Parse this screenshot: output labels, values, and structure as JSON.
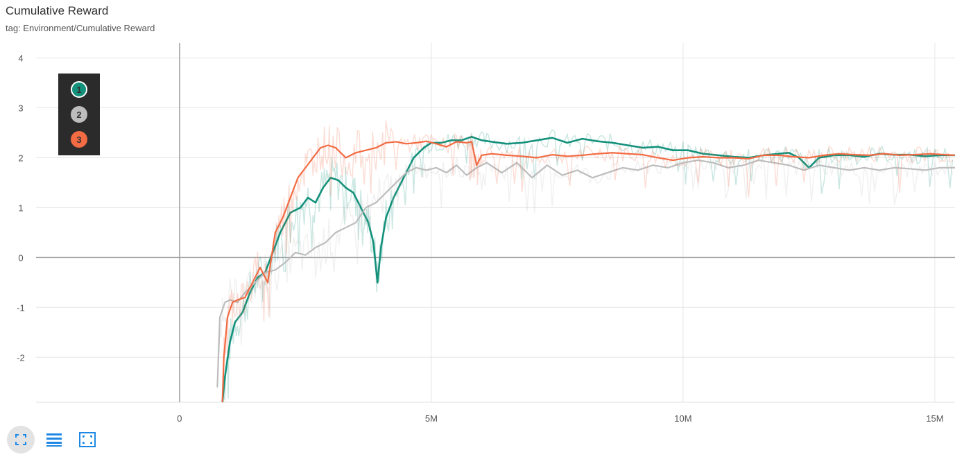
{
  "header": {
    "title": "Cumulative Reward",
    "subtitle": "tag: Environment/Cumulative Reward"
  },
  "legend": [
    {
      "label": "1",
      "color": "#13917b"
    },
    {
      "label": "2",
      "color": "#bdbdbd"
    },
    {
      "label": "3",
      "color": "#f26b43"
    }
  ],
  "toolbar": {
    "icons": [
      "expand-icon",
      "list-icon",
      "fit-domain-icon"
    ],
    "accent": "#1e88e5"
  },
  "chart_data": {
    "type": "line",
    "title": "Cumulative Reward",
    "subtitle": "tag: Environment/Cumulative Reward",
    "xlabel": "",
    "ylabel": "",
    "xlim": [
      -2850000,
      15400000
    ],
    "ylim": [
      -2.9,
      4.3
    ],
    "xticks": [
      0,
      5000000,
      10000000,
      15000000
    ],
    "xtick_labels": [
      "0",
      "5M",
      "10M",
      "15M"
    ],
    "yticks": [
      -2,
      -1,
      0,
      1,
      2,
      3,
      4
    ],
    "ytick_labels": [
      "-2",
      "-1",
      "0",
      "1",
      "2",
      "3",
      "4"
    ],
    "grid": true,
    "legend_position": "top-left",
    "series": [
      {
        "name": "1",
        "color": "#13917b",
        "x": [
          850000,
          900000,
          1000000,
          1100000,
          1250000,
          1400000,
          1550000,
          1700000,
          1850000,
          2000000,
          2200000,
          2400000,
          2550000,
          2700000,
          2850000,
          3000000,
          3150000,
          3300000,
          3450000,
          3550000,
          3650000,
          3750000,
          3850000,
          3930000,
          4000000,
          4100000,
          4250000,
          4450000,
          4650000,
          4850000,
          5000000,
          5200000,
          5400000,
          5600000,
          5800000,
          6000000,
          6200000,
          6500000,
          6800000,
          7100000,
          7400000,
          7700000,
          8000000,
          8300000,
          8600000,
          8900000,
          9200000,
          9500000,
          9800000,
          10100000,
          10400000,
          10700000,
          11000000,
          11300000,
          11600000,
          11900000,
          12100000,
          12300000,
          12500000,
          12700000,
          13000000,
          13300000,
          13600000,
          13900000,
          14200000,
          14500000,
          14800000,
          15100000,
          15400000
        ],
        "y": [
          -2.9,
          -2.4,
          -1.7,
          -1.3,
          -1.1,
          -0.7,
          -0.4,
          -0.3,
          0.1,
          0.5,
          0.9,
          1.0,
          1.2,
          1.1,
          1.4,
          1.6,
          1.55,
          1.4,
          1.3,
          1.1,
          0.9,
          0.7,
          0.3,
          -0.5,
          0.2,
          0.8,
          1.2,
          1.6,
          2.0,
          2.2,
          2.3,
          2.3,
          2.35,
          2.35,
          2.42,
          2.35,
          2.32,
          2.28,
          2.3,
          2.35,
          2.4,
          2.3,
          2.38,
          2.33,
          2.3,
          2.25,
          2.2,
          2.22,
          2.15,
          2.15,
          2.08,
          2.05,
          2.02,
          2.0,
          2.05,
          2.08,
          2.1,
          2.0,
          1.8,
          2.0,
          2.05,
          2.05,
          2.02,
          2.08,
          2.06,
          2.06,
          2.03,
          2.05,
          2.05
        ]
      },
      {
        "name": "2",
        "color": "#bdbdbd",
        "x": [
          750000,
          800000,
          900000,
          1000000,
          1150000,
          1300000,
          1500000,
          1700000,
          1900000,
          2100000,
          2300000,
          2500000,
          2700000,
          2900000,
          3100000,
          3300000,
          3500000,
          3700000,
          3900000,
          4100000,
          4300000,
          4500000,
          4700000,
          4900000,
          5100000,
          5300000,
          5500000,
          5700000,
          5900000,
          6100000,
          6400000,
          6700000,
          7000000,
          7300000,
          7600000,
          7900000,
          8200000,
          8500000,
          8800000,
          9100000,
          9400000,
          9700000,
          10000000,
          10300000,
          10600000,
          10900000,
          11200000,
          11500000,
          11800000,
          12100000,
          12400000,
          12700000,
          13000000,
          13300000,
          13600000,
          13900000,
          14200000,
          14500000,
          14800000,
          15100000,
          15400000
        ],
        "y": [
          -2.6,
          -1.2,
          -0.9,
          -0.85,
          -0.9,
          -0.7,
          -0.5,
          -0.3,
          -0.25,
          -0.1,
          0.1,
          0.05,
          0.2,
          0.3,
          0.5,
          0.6,
          0.7,
          1.0,
          1.1,
          1.3,
          1.5,
          1.7,
          1.8,
          1.75,
          1.8,
          1.7,
          1.85,
          1.65,
          1.8,
          1.9,
          1.7,
          1.9,
          1.6,
          1.85,
          1.65,
          1.75,
          1.6,
          1.7,
          1.8,
          1.75,
          1.85,
          1.8,
          1.9,
          1.95,
          1.9,
          1.8,
          1.85,
          1.95,
          1.9,
          1.85,
          1.75,
          1.85,
          1.8,
          1.75,
          1.8,
          1.75,
          1.8,
          1.78,
          1.75,
          1.8,
          1.8
        ]
      },
      {
        "name": "3",
        "color": "#f26b43",
        "x": [
          850000,
          880000,
          950000,
          1050000,
          1150000,
          1300000,
          1450000,
          1600000,
          1750000,
          1900000,
          2050000,
          2200000,
          2350000,
          2500000,
          2650000,
          2800000,
          2950000,
          3100000,
          3300000,
          3500000,
          3700000,
          3900000,
          4100000,
          4300000,
          4500000,
          4700000,
          4900000,
          5100000,
          5300000,
          5500000,
          5700000,
          5800000,
          5900000,
          6000000,
          6200000,
          6500000,
          6800000,
          7100000,
          7400000,
          7700000,
          8000000,
          8300000,
          8600000,
          8900000,
          9200000,
          9500000,
          9800000,
          10100000,
          10400000,
          10700000,
          11000000,
          11300000,
          11600000,
          11900000,
          12200000,
          12500000,
          12800000,
          13100000,
          13400000,
          13700000,
          14000000,
          14300000,
          14600000,
          14900000,
          15200000,
          15400000
        ],
        "y": [
          -2.9,
          -2.0,
          -1.2,
          -0.9,
          -0.85,
          -0.8,
          -0.5,
          -0.2,
          -0.5,
          0.5,
          0.8,
          1.2,
          1.6,
          1.8,
          2.0,
          2.2,
          2.25,
          2.2,
          2.0,
          2.1,
          2.15,
          2.2,
          2.3,
          2.32,
          2.28,
          2.3,
          2.33,
          2.28,
          2.22,
          2.32,
          2.3,
          2.32,
          1.85,
          2.05,
          2.08,
          2.05,
          2.03,
          2.0,
          2.06,
          2.03,
          2.05,
          2.08,
          2.1,
          2.08,
          2.06,
          2.0,
          1.95,
          2.0,
          2.02,
          2.0,
          2.0,
          1.98,
          2.05,
          2.05,
          2.02,
          2.0,
          2.05,
          2.08,
          2.06,
          2.05,
          2.08,
          2.05,
          2.06,
          2.08,
          2.06,
          2.05
        ]
      }
    ]
  }
}
